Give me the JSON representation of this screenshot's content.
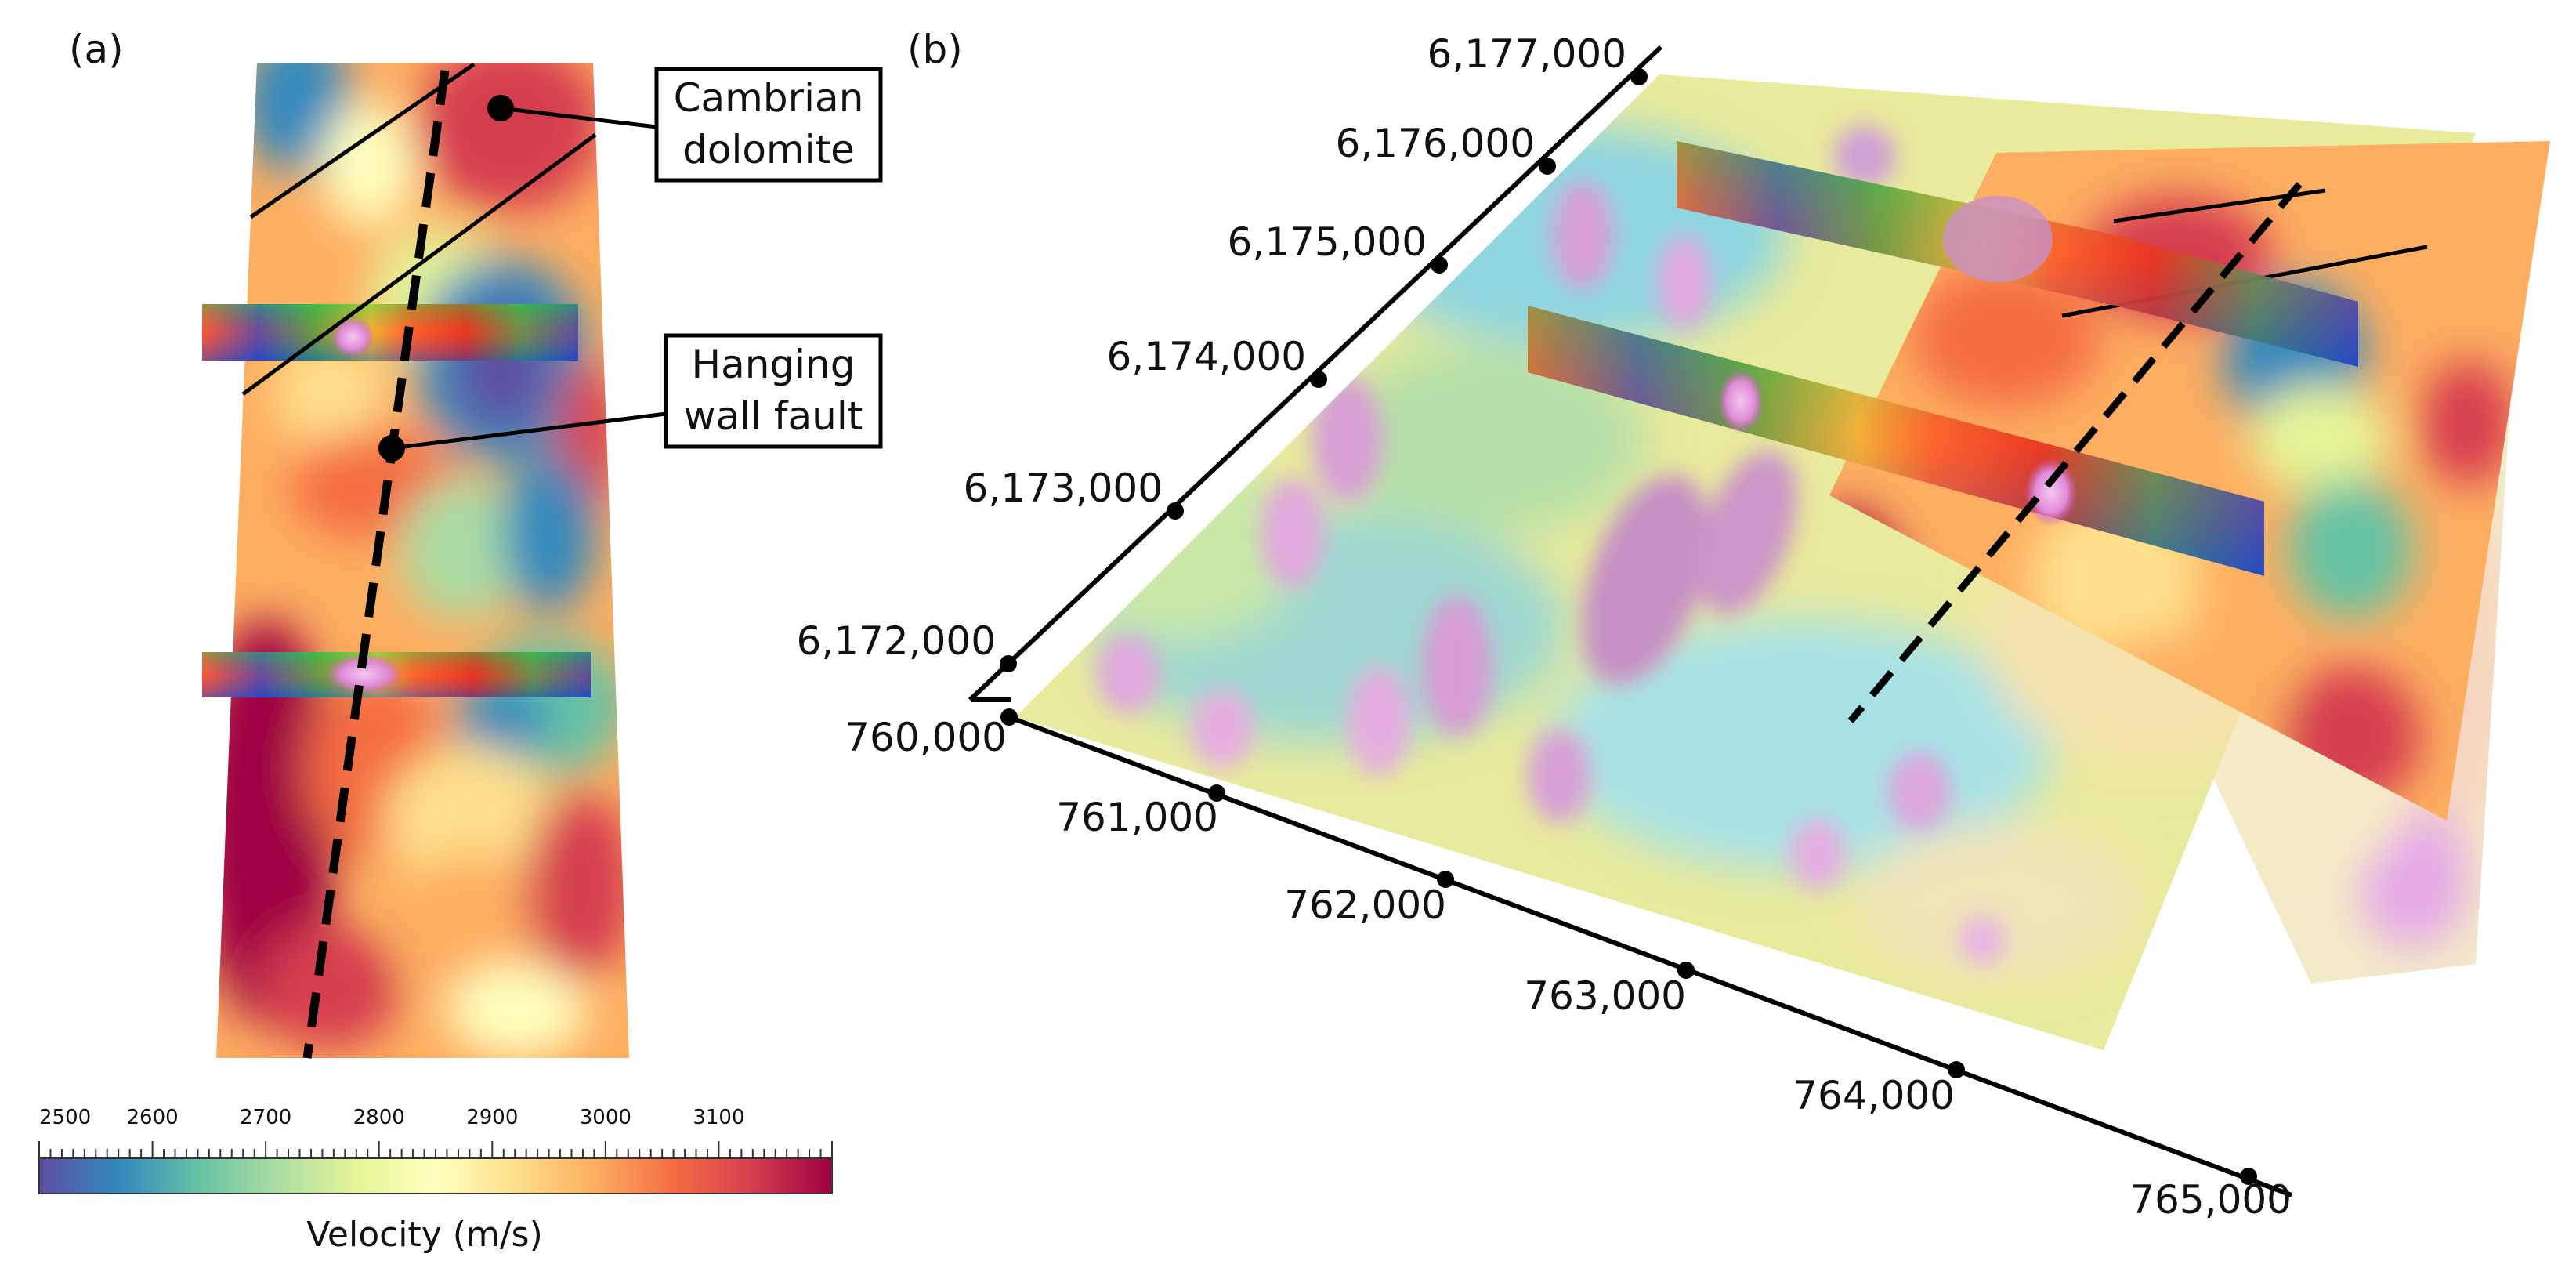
{
  "panel_a": {
    "label": "(a)",
    "callouts": [
      {
        "line1": "Cambrian",
        "line2": "dolomite"
      },
      {
        "line1": "Hanging",
        "line2": "wall fault"
      }
    ]
  },
  "panel_b": {
    "label": "(b)",
    "northing_labels": [
      "6,177,000",
      "6,176,000",
      "6,175,000",
      "6,174,000",
      "6,173,000",
      "6,172,000"
    ],
    "easting_labels": [
      "760,000",
      "761,000",
      "762,000",
      "763,000",
      "764,000",
      "765,000"
    ]
  },
  "colorbar": {
    "title": "Velocity (m/s)",
    "min": 2500,
    "max": 3200,
    "tick_labels": [
      "2500",
      "2600",
      "2700",
      "2800",
      "2900",
      "3000",
      "3100"
    ],
    "colors": [
      "#5e4fa2",
      "#3288bd",
      "#66c2a5",
      "#abdda4",
      "#e6f598",
      "#ffffbf",
      "#fee08b",
      "#fdae61",
      "#f46d43",
      "#d53e4f",
      "#9e0142"
    ]
  }
}
